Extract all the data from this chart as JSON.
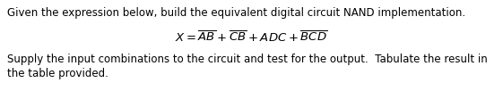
{
  "line1": "Given the expression below, build the equivalent digital circuit NAND implementation.",
  "line3": "Supply the input combinations to the circuit and test for the output.  Tabulate the result in",
  "line4": "the table provided.",
  "formula": "$X = \\overline{AB} + \\overline{CB} + ADC + \\overline{BCD}$",
  "bg_color": "#ffffff",
  "text_color": "#000000",
  "font_size": 8.5,
  "formula_font_size": 9.5,
  "fig_width": 5.61,
  "fig_height": 1.02,
  "dpi": 100
}
